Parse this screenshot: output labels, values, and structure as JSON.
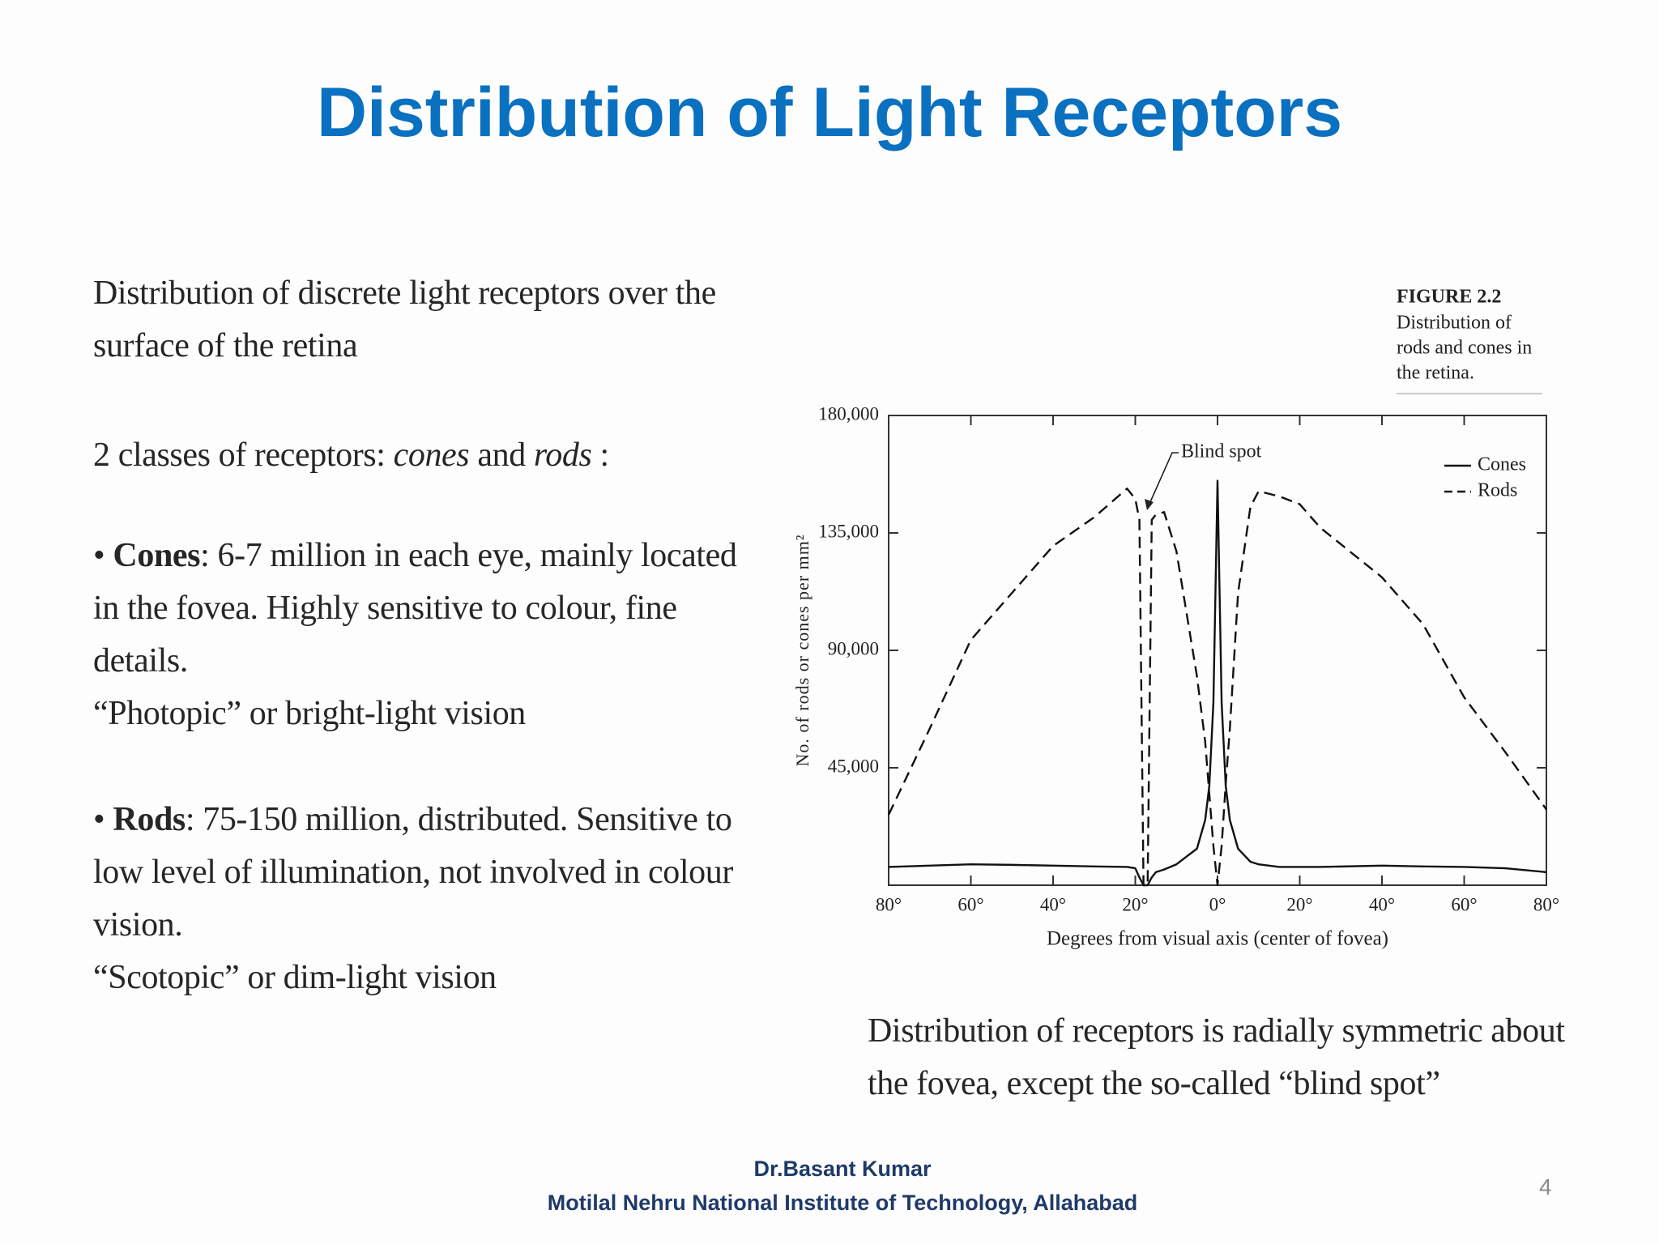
{
  "title": "Distribution of Light Receptors",
  "text": {
    "intro": "Distribution of discrete light receptors over the surface of the retina",
    "classes": [
      "2 classes of receptors: ",
      "cones",
      " and ",
      "rods",
      " :"
    ],
    "cones": {
      "bullet": "•",
      "term": "Cones",
      "desc": ": 6-7 million in each eye, mainly located in the fovea. Highly sensitive to colour, fine details.",
      "vision": "“Photopic” or bright-light vision"
    },
    "rods": {
      "bullet": "•",
      "term": "Rods",
      "desc": ": 75-150 million, distributed. Sensitive to low level of illumination, not involved in colour vision.",
      "vision": "“Scotopic” or dim-light vision"
    },
    "note": "Distribution of receptors is radially symmetric about the fovea, except the so-called “blind spot”"
  },
  "chart_data": {
    "type": "line",
    "figure_label": "FIGURE 2.2",
    "caption": [
      "Distribution of",
      "rods and cones in",
      "the retina."
    ],
    "x_label": "Degrees from visual axis (center of fovea)",
    "y_label": "No. of rods or cones per mm²",
    "annotation": "Blind spot",
    "x": [
      -80,
      -70,
      -60,
      -50,
      -40,
      -30,
      -22,
      -20,
      -19,
      -18,
      -17,
      -16,
      -15,
      -13,
      -10,
      -5,
      -3,
      -2,
      -1,
      0,
      1,
      2,
      3,
      5,
      8,
      10,
      15,
      20,
      25,
      40,
      50,
      60,
      70,
      80
    ],
    "series": [
      {
        "name": "Cones",
        "color": "#111111",
        "line_style": "solid",
        "values": [
          7000,
          7500,
          8000,
          7800,
          7500,
          7200,
          7000,
          6500,
          3000,
          0,
          0,
          3000,
          5000,
          6000,
          8000,
          14000,
          25000,
          38000,
          70000,
          155000,
          70000,
          38000,
          25000,
          14000,
          9000,
          8000,
          7000,
          7000,
          7000,
          7500,
          7200,
          7000,
          6500,
          5000
        ]
      },
      {
        "name": "Rods",
        "color": "#111111",
        "line_style": "dashed",
        "values": [
          27000,
          60000,
          94000,
          112000,
          130000,
          141000,
          152000,
          148000,
          140000,
          0,
          0,
          140000,
          142000,
          143000,
          128000,
          80000,
          55000,
          35000,
          15000,
          0,
          15000,
          39000,
          60000,
          112000,
          145000,
          151000,
          149000,
          146000,
          137000,
          118000,
          100000,
          72000,
          51000,
          29000
        ]
      }
    ],
    "xlim": [
      -80,
      80
    ],
    "xticks": [
      {
        "value": -80,
        "label": "80°"
      },
      {
        "value": -60,
        "label": "60°"
      },
      {
        "value": -40,
        "label": "40°"
      },
      {
        "value": -20,
        "label": "20°"
      },
      {
        "value": 0,
        "label": "0°"
      },
      {
        "value": 20,
        "label": "20°"
      },
      {
        "value": 40,
        "label": "40°"
      },
      {
        "value": 60,
        "label": "60°"
      },
      {
        "value": 80,
        "label": "80°"
      }
    ],
    "ylim": [
      0,
      180000
    ],
    "yticks": [
      {
        "value": 45000,
        "label": "45,000"
      },
      {
        "value": 90000,
        "label": "90,000"
      },
      {
        "value": 135000,
        "label": "135,000"
      },
      {
        "value": 180000,
        "label": "180,000"
      }
    ],
    "grid": false,
    "legend": "upper right"
  },
  "footer": {
    "author": "Dr.Basant Kumar",
    "institute": "Motilal Nehru National Institute of Technology, Allahabad",
    "page": "4"
  }
}
